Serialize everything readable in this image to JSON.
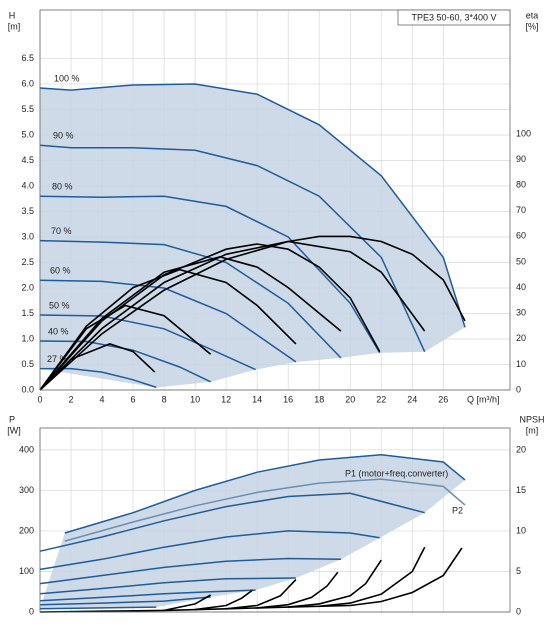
{
  "chart_data": [
    {
      "type": "line",
      "title": "TPE3 50-60, 3*400 V",
      "ylabel": "H",
      "yunit": "[m]",
      "y2label": "eta",
      "y2unit": "[%]",
      "xlabel": "Q [m³/h]",
      "xlim": [
        0,
        30.3
      ],
      "ylim": [
        0,
        7.45
      ],
      "y2lim": [
        0,
        148.4
      ],
      "xticks": [
        0,
        2,
        4,
        6,
        8,
        10,
        12,
        14,
        16,
        18,
        20,
        22,
        24,
        26
      ],
      "yticks": [
        {
          "value": 0,
          "label": "0.0"
        },
        0.5,
        {
          "value": 1,
          "label": "1.0"
        },
        1.5,
        {
          "value": 2,
          "label": "2.0"
        },
        2.5,
        {
          "value": 3,
          "label": "3.0"
        },
        3.5,
        {
          "value": 4,
          "label": "4.0"
        },
        4.5,
        {
          "value": 5,
          "label": "5.0"
        },
        5.5,
        {
          "value": 6,
          "label": "6.0"
        },
        6.5
      ],
      "y2ticks": [
        0,
        10,
        20,
        30,
        40,
        50,
        60,
        70,
        80,
        90,
        100
      ],
      "grid": true,
      "series": [
        {
          "name": "100 %",
          "color": "#1f5c99",
          "x": [
            0,
            2,
            6,
            10,
            14,
            18,
            22,
            26,
            27.4
          ],
          "values": [
            5.92,
            5.88,
            5.98,
            6.0,
            5.8,
            5.2,
            4.2,
            2.6,
            1.23
          ]
        },
        {
          "name": "90 %",
          "color": "#1f5c99",
          "x": [
            0,
            2,
            6,
            10,
            14,
            18,
            22,
            24.8
          ],
          "values": [
            4.8,
            4.75,
            4.75,
            4.7,
            4.4,
            3.8,
            2.6,
            0.75
          ]
        },
        {
          "name": "80 %",
          "color": "#1f5c99",
          "x": [
            0,
            4,
            8,
            12,
            16,
            20,
            21.9
          ],
          "values": [
            3.8,
            3.78,
            3.8,
            3.6,
            3.0,
            1.7,
            0.73
          ]
        },
        {
          "name": "70 %",
          "color": "#1f5c99",
          "x": [
            0,
            4,
            8,
            12,
            16,
            19.4
          ],
          "values": [
            2.93,
            2.9,
            2.85,
            2.5,
            1.7,
            0.63
          ]
        },
        {
          "name": "60 %",
          "color": "#1f5c99",
          "x": [
            0,
            4,
            8,
            12,
            16.5
          ],
          "values": [
            2.15,
            2.13,
            2.0,
            1.5,
            0.55
          ]
        },
        {
          "name": "50 %",
          "color": "#1f5c99",
          "x": [
            0,
            4,
            8,
            11,
            13.9
          ],
          "values": [
            1.47,
            1.45,
            1.2,
            0.8,
            0.4
          ]
        },
        {
          "name": "40 %",
          "color": "#1f5c99",
          "x": [
            0,
            3,
            6,
            9,
            11
          ],
          "values": [
            0.96,
            0.95,
            0.78,
            0.45,
            0.16
          ]
        },
        {
          "name": "27 %",
          "color": "#1f5c99",
          "x": [
            0,
            2,
            4,
            6,
            7.5
          ],
          "values": [
            0.42,
            0.42,
            0.35,
            0.2,
            0.05
          ]
        },
        {
          "axis": "y2",
          "color": "#000000",
          "x": [
            0,
            4,
            8,
            12,
            16,
            18,
            20,
            22,
            24,
            26,
            27.4
          ],
          "values": [
            0,
            22,
            39,
            51,
            58,
            60,
            60,
            58,
            53,
            43,
            27
          ]
        },
        {
          "axis": "y2",
          "color": "#000000",
          "x": [
            0,
            4,
            8,
            12,
            16,
            20,
            22,
            24.8
          ],
          "values": [
            0,
            24,
            42,
            53,
            58,
            54,
            46,
            23
          ]
        },
        {
          "axis": "y2",
          "color": "#000000",
          "x": [
            0,
            4,
            8,
            12,
            14,
            16,
            18,
            20,
            21.9
          ],
          "values": [
            0,
            27,
            45,
            55,
            57,
            55,
            48,
            36,
            15
          ]
        },
        {
          "axis": "y2",
          "color": "#000000",
          "x": [
            0,
            4,
            8,
            11.6,
            14,
            16,
            19.4
          ],
          "values": [
            0,
            28,
            46,
            52,
            48,
            40,
            23
          ]
        },
        {
          "axis": "y2",
          "color": "#000000",
          "x": [
            0,
            3,
            6,
            9,
            12,
            14,
            16.5
          ],
          "values": [
            0,
            25,
            40,
            47,
            42,
            33,
            18
          ]
        },
        {
          "axis": "y2",
          "color": "#000000",
          "x": [
            0,
            3,
            5.5,
            8,
            11
          ],
          "values": [
            0,
            24,
            33,
            29,
            14
          ]
        },
        {
          "axis": "y2",
          "color": "#000000",
          "x": [
            0,
            2,
            4.5,
            6,
            7.4
          ],
          "values": [
            0,
            12,
            18,
            15,
            7
          ]
        }
      ]
    },
    {
      "type": "line",
      "ylabel": "P",
      "yunit": "[W]",
      "y2label": "NPSH",
      "y2unit": "[m]",
      "xlim": [
        0,
        30.3
      ],
      "ylim": [
        0,
        454
      ],
      "y2lim": [
        0,
        22.7
      ],
      "yticks": [
        0,
        100,
        200,
        300,
        400
      ],
      "y2ticks": [
        0,
        5,
        10,
        15,
        20
      ],
      "grid": true,
      "series": [
        {
          "name": "P1 (motor+freq.converter)",
          "color": "#1f5c99",
          "x": [
            1.6,
            6,
            10,
            14,
            18,
            22,
            26,
            27.4
          ],
          "values": [
            195,
            245,
            300,
            345,
            375,
            388,
            370,
            326
          ]
        },
        {
          "color": "#1f5c99",
          "x": [
            0,
            4,
            8,
            12,
            16,
            20,
            24.8
          ],
          "values": [
            150,
            185,
            225,
            260,
            285,
            293,
            245
          ]
        },
        {
          "color": "#1f5c99",
          "x": [
            0,
            4,
            8,
            12,
            16,
            20,
            21.9
          ],
          "values": [
            105,
            130,
            160,
            185,
            200,
            195,
            183
          ]
        },
        {
          "color": "#1f5c99",
          "x": [
            0,
            4,
            8,
            12,
            16,
            19.4
          ],
          "values": [
            70,
            90,
            110,
            125,
            132,
            130
          ]
        },
        {
          "color": "#1f5c99",
          "x": [
            0,
            4,
            8,
            12,
            16.5
          ],
          "values": [
            45,
            58,
            72,
            82,
            84
          ]
        },
        {
          "color": "#1f5c99",
          "x": [
            0,
            4,
            8,
            11,
            13.9
          ],
          "values": [
            28,
            36,
            45,
            50,
            54
          ]
        },
        {
          "color": "#1f5c99",
          "x": [
            0,
            4,
            8,
            11
          ],
          "values": [
            18,
            22,
            27,
            37
          ]
        },
        {
          "color": "#1f5c99",
          "x": [
            0,
            4,
            7.5
          ],
          "values": [
            8,
            10,
            12
          ]
        },
        {
          "name": "P2",
          "color": "#6a8fb5",
          "x": [
            1.6,
            6,
            10,
            14,
            18,
            22,
            26,
            27.4
          ],
          "values": [
            175,
            222,
            262,
            295,
            318,
            328,
            310,
            264
          ]
        },
        {
          "axis": "y2",
          "color": "#000000",
          "x": [
            0,
            4,
            8,
            12,
            16,
            20
          ],
          "values": [
            0,
            0.1,
            0.2,
            0.4,
            0.6,
            0.8
          ]
        },
        {
          "axis": "y2",
          "color": "#000000",
          "x": [
            20,
            22,
            24,
            26,
            27.2
          ],
          "values": [
            0.8,
            1.3,
            2.4,
            4.5,
            7.9
          ]
        },
        {
          "axis": "y2",
          "color": "#000000",
          "x": [
            18,
            20,
            22,
            24,
            24.8
          ],
          "values": [
            0.7,
            1.1,
            2.2,
            5,
            8.0
          ]
        },
        {
          "axis": "y2",
          "color": "#000000",
          "x": [
            16,
            18,
            20,
            21,
            22
          ],
          "values": [
            0.6,
            1.0,
            2.0,
            3.5,
            6.4
          ]
        },
        {
          "axis": "y2",
          "color": "#000000",
          "x": [
            14,
            16,
            17.5,
            18.5,
            19.2
          ],
          "values": [
            0.5,
            0.9,
            1.8,
            3.2,
            4.9
          ]
        },
        {
          "axis": "y2",
          "color": "#000000",
          "x": [
            12,
            14,
            15.5,
            16.5
          ],
          "values": [
            0.4,
            0.8,
            2.0,
            4.0
          ]
        },
        {
          "axis": "y2",
          "color": "#000000",
          "x": [
            10,
            12,
            13,
            13.7
          ],
          "values": [
            0.3,
            0.8,
            1.7,
            2.7
          ]
        },
        {
          "axis": "y2",
          "color": "#000000",
          "x": [
            8,
            10,
            11
          ],
          "values": [
            0.2,
            1.0,
            2.1
          ]
        }
      ]
    }
  ]
}
